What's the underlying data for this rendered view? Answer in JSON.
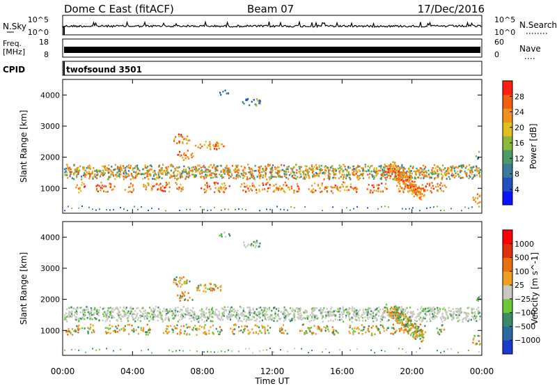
{
  "header": {
    "title": "Dome C East (fitACF)",
    "beam": "Beam 07",
    "date": "17/Dec/2016"
  },
  "nsky": {
    "label": "N.Sky",
    "tick_top": "10^5",
    "tick_bottom": "10^0",
    "right_tick_top": "10^5",
    "right_tick_bottom": "10^0",
    "right_label": "N.Search"
  },
  "freq": {
    "label_line1": "Freq.",
    "label_line2": "[MHz]",
    "tick_top": "18",
    "tick_bottom": "8",
    "right_tick_top": "60",
    "right_tick_bottom": "0",
    "right_label": "Nave"
  },
  "cpid": {
    "label": "CPID",
    "value": "twofsound 3501"
  },
  "chart_data": [
    {
      "type": "heatmap",
      "name": "power",
      "ylabel": "Slant Range [km]",
      "yticks": [
        "1000",
        "2000",
        "3000",
        "4000"
      ],
      "ylim": [
        200,
        4500
      ],
      "colorbar_label": "Power [dB]",
      "colorbar_ticks": [
        "4",
        "8",
        "12",
        "16",
        "20",
        "24",
        "28"
      ],
      "colorbar_range": [
        0,
        30
      ],
      "colors": [
        "#0a14ff",
        "#2050c0",
        "#3a7a9a",
        "#4a9a6a",
        "#8ab83a",
        "#e0c020",
        "#f09020",
        "#f06010",
        "#ff2010"
      ]
    },
    {
      "type": "heatmap",
      "name": "velocity",
      "ylabel": "Slant Range [km]",
      "yticks": [
        "1000",
        "2000",
        "3000",
        "4000"
      ],
      "ylim": [
        200,
        4500
      ],
      "xlabel": "Time UT",
      "xticks": [
        "00:00",
        "04:00",
        "08:00",
        "12:00",
        "16:00",
        "20:00",
        "00:00"
      ],
      "colorbar_label": "Velocity [m s^-1]",
      "colorbar_ticks": [
        "1000",
        "500",
        "100",
        "25",
        "−25",
        "−100",
        "−500",
        "−1000"
      ],
      "colors": [
        "#1a3ad0",
        "#2a6aa0",
        "#3a8a6a",
        "#6ac83a",
        "#c8c8c0",
        "#f0a020",
        "#e87010",
        "#e03010",
        "#ff0000"
      ]
    }
  ]
}
